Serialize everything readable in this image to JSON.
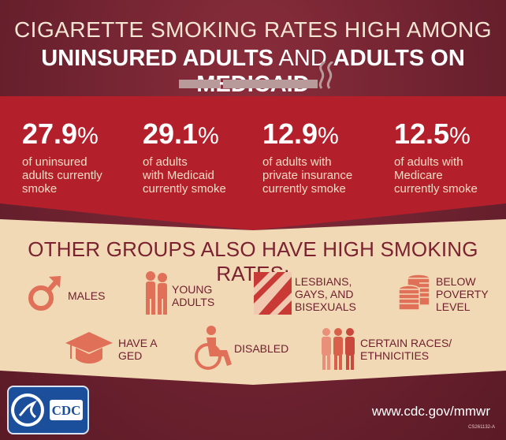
{
  "header": {
    "line1": "CIGARETTE SMOKING RATES HIGH AMONG",
    "line2_a": "UNINSURED ADULTS",
    "line2_b": " AND ",
    "line2_c": "ADULTS ON MEDICAID"
  },
  "stats": [
    {
      "value": "27.9",
      "symbol": "%",
      "line1": "of uninsured",
      "line2": "adults currently",
      "line3": "smoke"
    },
    {
      "value": "29.1",
      "symbol": "%",
      "line1": "of adults",
      "line2": "with Medicaid",
      "line3": "currently smoke"
    },
    {
      "value": "12.9",
      "symbol": "%",
      "line1": "of adults with",
      "line2": "private insurance",
      "line3": "currently smoke"
    },
    {
      "value": "12.5",
      "symbol": "%",
      "line1": "of adults with",
      "line2": "Medicare",
      "line3": "currently smoke"
    }
  ],
  "other_heading": "OTHER GROUPS ALSO HAVE HIGH SMOKING RATES:",
  "groups": {
    "males": "MALES",
    "young_1": "YOUNG",
    "young_2": "ADULTS",
    "lgb_1": "LESBIANS,",
    "lgb_2": "GAYS, AND",
    "lgb_3": "BISEXUALS",
    "poverty_1": "BELOW",
    "poverty_2": "POVERTY",
    "poverty_3": "LEVEL",
    "ged_1": "HAVE A",
    "ged_2": "GED",
    "disabled": "DISABLED",
    "races_1": "CERTAIN RACES/",
    "races_2": "ETHNICITIES"
  },
  "footer": {
    "url": "www.cdc.gov/mmwr",
    "code": "CS261132-A",
    "logo_text": "CDC"
  },
  "colors": {
    "background": "#6e2230",
    "band": "#b3202c",
    "panel": "#f2d9b6",
    "accent": "#e07058"
  }
}
